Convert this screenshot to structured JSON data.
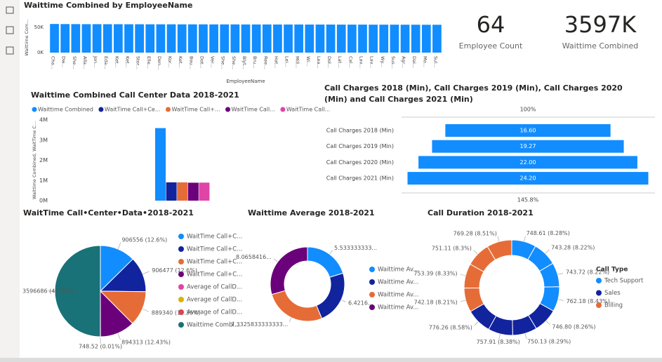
{
  "cards": [
    {
      "value": "64",
      "label": "Employee Count"
    },
    {
      "value": "3597K",
      "label": "Waittime Combined"
    }
  ],
  "chart_data": [
    {
      "type": "bar",
      "title": "Waittime Combined by EmployeeName",
      "y_label": "Waittime Com...",
      "x_label": "EmployeeName",
      "categories": [
        "Cha...",
        "Dw...",
        "She...",
        "Alla...",
        "Jon...",
        "Eda...",
        "Ket...",
        "Ket...",
        "Stor...",
        "Elle...",
        "Den...",
        "Kor...",
        "Ket...",
        "Bou...",
        "Dot...",
        "Ver...",
        "She...",
        "She...",
        "Blyt...",
        "Bru...",
        "Ree...",
        "Hat...",
        "Lei...",
        "Mill...",
        "Wi...",
        "Lea...",
        "Dol...",
        "Lat...",
        "Cal...",
        "Lav...",
        "Lav...",
        "Wy...",
        "Sus...",
        "Agr...",
        "Dai...",
        "Mo...",
        "Sul..."
      ],
      "values": [
        57000,
        56800,
        56700,
        56600,
        56600,
        56500,
        56500,
        56400,
        56400,
        56300,
        56300,
        56300,
        56200,
        56200,
        56200,
        56100,
        56100,
        56100,
        56000,
        56000,
        56000,
        55900,
        55900,
        55900,
        55800,
        55800,
        55800,
        55700,
        55700,
        55700,
        55600,
        55600,
        55600,
        55500,
        55500,
        55400,
        55400
      ],
      "color": "#118dff",
      "ylim": [
        0,
        60000
      ],
      "yticks": [
        {
          "value": 0,
          "label": "0K"
        },
        {
          "value": 50000,
          "label": "50K"
        }
      ]
    },
    {
      "type": "column",
      "title": "Waittime Combined Call Center Data 2018-2021",
      "y_label": "Waittime Combined, WaitTime C...",
      "categories": [
        null
      ],
      "series": [
        {
          "name": "Waittime Combined",
          "color": "#118dff",
          "values": [
            3596686
          ]
        },
        {
          "name": "WaitTime Call+Ce...",
          "color": "#12239e",
          "values": [
            906556
          ]
        },
        {
          "name": "WaitTime Call+...",
          "color": "#e66c37",
          "values": [
            906477
          ]
        },
        {
          "name": "WaitTime Call...",
          "color": "#6b007b",
          "values": [
            889340
          ]
        },
        {
          "name": "WaitTime Call...",
          "color": "#e044a7",
          "values": [
            894313
          ]
        }
      ],
      "ylim": [
        0,
        4000000
      ],
      "yticks": [
        {
          "value": 0,
          "label": "0M"
        },
        {
          "value": 1000000,
          "label": "1M"
        },
        {
          "value": 2000000,
          "label": "2M"
        },
        {
          "value": 3000000,
          "label": "3M"
        },
        {
          "value": 4000000,
          "label": "4M"
        }
      ]
    },
    {
      "type": "funnel",
      "title": "Call Charges 2018 (Min), Call Charges 2019 (Min), Call Charges 2020 (Min) and Call Charges 2021 (Min)",
      "top_label": "100%",
      "bottom_label": "145.8%",
      "categories": [
        "Call Charges 2018 (Min)",
        "Call Charges 2019 (Min)",
        "Call Charges 2020 (Min)",
        "Call Charges 2021 (Min)"
      ],
      "values": [
        16.6,
        19.27,
        22,
        24.2
      ],
      "value_labels": [
        "16.60",
        "19.27",
        "22.00",
        "24.20"
      ],
      "color": "#118dff"
    },
    {
      "type": "pie",
      "title": "WaitTime Call•Center•Data•2018-2021",
      "categories": [
        "WaitTime Call+C...",
        "WaitTime Call+C...",
        "WaitTime Call+C...",
        "WaitTime Call+C...",
        "Average of CallD...",
        "Average of CallD...",
        "Average of CallD...",
        "Waittime Combi..."
      ],
      "values": [
        906556,
        906477,
        889340,
        894313,
        748.52,
        750,
        750,
        3596686
      ],
      "value_labels": [
        "906556 (12.6%)",
        "906477 (12.6%)",
        "889340 (12.36%)",
        "894313 (12.43%)",
        "748.52 (0.01%)",
        null,
        null,
        "3596686 (49.98%)"
      ],
      "colors": [
        "#118dff",
        "#12239e",
        "#e66c37",
        "#6b007b",
        "#e044a7",
        "#d9b300",
        "#d64550",
        "#197278"
      ]
    },
    {
      "type": "donut",
      "title": "Waittime Average 2018-2021",
      "categories": [
        "Waittime Av...",
        "Waittime Av...",
        "Waittime Av...",
        "Waittime Av..."
      ],
      "values": [
        5.5333,
        6.4216,
        7.3326,
        8.0658
      ],
      "value_labels": [
        "5.533333333...",
        "6.4216...",
        "7.3325833333333...",
        "8.0658416..."
      ],
      "colors": [
        "#118dff",
        "#12239e",
        "#e66c37",
        "#6b007b"
      ]
    },
    {
      "type": "donut-series",
      "title": "Call Duration 2018-2021",
      "legend_title": "Call Type",
      "series": [
        {
          "name": "Tech Support",
          "color": "#118dff",
          "values": [
            748.61,
            743.28,
            743.72,
            762.18
          ],
          "value_labels": [
            "748.61 (8.28%)",
            "743.28 (8.22%)",
            "743.72 (8.22%)",
            "762.18 (8.43%)"
          ]
        },
        {
          "name": "Sales",
          "color": "#12239e",
          "values": [
            746.8,
            750.13,
            757.91,
            776.26
          ],
          "value_labels": [
            "746.80 (8.26%)",
            "750.13 (8.29%)",
            "757.91 (8.38%)",
            "776.26 (8.58%)"
          ]
        },
        {
          "name": "Billing",
          "color": "#e66c37",
          "values": [
            742.18,
            753.39,
            751.11,
            769.28
          ],
          "value_labels": [
            "742.18 (8.21%)",
            "753.39 (8.33%)",
            "751.11 (8.3%)",
            "769.28 (8.51%)"
          ]
        }
      ]
    }
  ]
}
